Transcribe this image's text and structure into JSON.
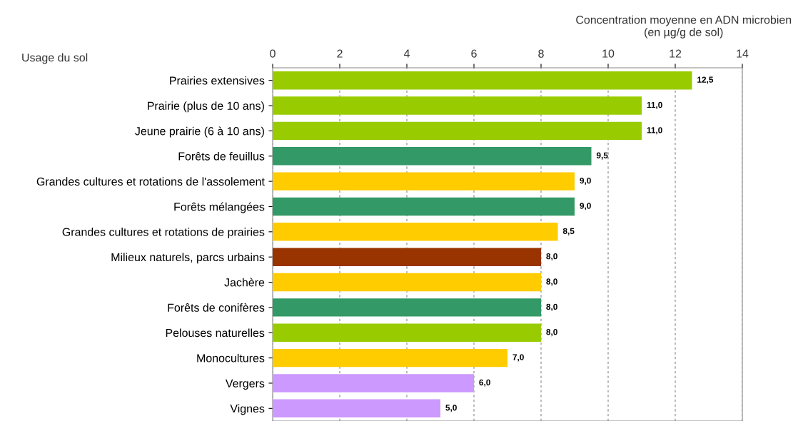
{
  "chart_data": {
    "type": "bar",
    "orientation": "horizontal",
    "xlabel": "Concentration moyenne en ADN microbien\n(en µg/g de sol)",
    "ylabel": "Usage du sol",
    "categories": [
      "Prairies extensives",
      "Prairie (plus de 10 ans)",
      "Jeune prairie (6 à 10 ans)",
      "Forêts de feuillus",
      "Grandes cultures et rotations de l'assolement",
      "Forêts mélangées",
      "Grandes cultures et rotations de prairies",
      "Milieux naturels, parcs urbains",
      "Jachère",
      "Forêts de conifères",
      "Pelouses naturelles",
      "Monocultures",
      "Vergers",
      "Vignes"
    ],
    "values": [
      12.5,
      11.0,
      11.0,
      9.5,
      9.0,
      9.0,
      8.5,
      8.0,
      8.0,
      8.0,
      8.0,
      7.0,
      6.0,
      5.0
    ],
    "value_labels": [
      "12,5",
      "11,0",
      "11,0",
      "9,5",
      "9,0",
      "9,0",
      "8,5",
      "8,0",
      "8,0",
      "8,0",
      "8,0",
      "7,0",
      "6,0",
      "5,0"
    ],
    "colors": [
      "#99cc00",
      "#99cc00",
      "#99cc00",
      "#339966",
      "#ffcc00",
      "#339966",
      "#ffcc00",
      "#993300",
      "#ffcc00",
      "#339966",
      "#99cc00",
      "#ffcc00",
      "#cc99ff",
      "#cc99ff"
    ],
    "xlim": [
      0,
      14
    ],
    "xticks": [
      0,
      2,
      4,
      6,
      8,
      10,
      12,
      14
    ],
    "grid": "x"
  }
}
